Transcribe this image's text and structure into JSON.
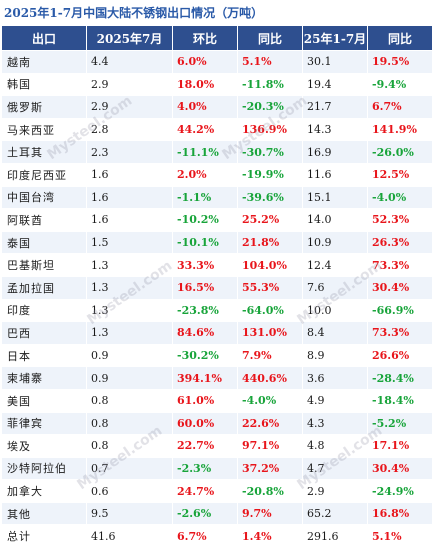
{
  "title": "2025年1-7月中国大陆不锈钢出口情况（万吨）",
  "headers": [
    "出口",
    "2025年7月",
    "环比",
    "同比",
    "25年1-7月",
    "同比"
  ],
  "rows": [
    {
      "name": "越南",
      "m7": "4.4",
      "mom": "6.0%",
      "yoy": "5.1%",
      "ytd": "30.1",
      "ytd_yoy": "19.5%"
    },
    {
      "name": "韩国",
      "m7": "2.9",
      "mom": "18.0%",
      "yoy": "-11.8%",
      "ytd": "19.4",
      "ytd_yoy": "-9.4%"
    },
    {
      "name": "俄罗斯",
      "m7": "2.9",
      "mom": "4.0%",
      "yoy": "-20.3%",
      "ytd": "21.7",
      "ytd_yoy": "6.7%"
    },
    {
      "name": "马来西亚",
      "m7": "2.8",
      "mom": "44.2%",
      "yoy": "136.9%",
      "ytd": "14.3",
      "ytd_yoy": "141.9%"
    },
    {
      "name": "土耳其",
      "m7": "2.3",
      "mom": "-11.1%",
      "yoy": "-30.7%",
      "ytd": "16.9",
      "ytd_yoy": "-26.0%"
    },
    {
      "name": "印度尼西亚",
      "m7": "1.6",
      "mom": "2.0%",
      "yoy": "-19.9%",
      "ytd": "11.6",
      "ytd_yoy": "12.5%"
    },
    {
      "name": "中国台湾",
      "m7": "1.6",
      "mom": "-1.1%",
      "yoy": "-39.6%",
      "ytd": "15.1",
      "ytd_yoy": "-4.0%"
    },
    {
      "name": "阿联酋",
      "m7": "1.6",
      "mom": "-10.2%",
      "yoy": "25.2%",
      "ytd": "14.0",
      "ytd_yoy": "52.3%"
    },
    {
      "name": "泰国",
      "m7": "1.5",
      "mom": "-10.1%",
      "yoy": "21.8%",
      "ytd": "10.9",
      "ytd_yoy": "26.3%"
    },
    {
      "name": "巴基斯坦",
      "m7": "1.3",
      "mom": "33.3%",
      "yoy": "104.0%",
      "ytd": "12.4",
      "ytd_yoy": "73.3%"
    },
    {
      "name": "孟加拉国",
      "m7": "1.3",
      "mom": "16.5%",
      "yoy": "55.3%",
      "ytd": "7.6",
      "ytd_yoy": "30.4%"
    },
    {
      "name": "印度",
      "m7": "1.3",
      "mom": "-23.8%",
      "yoy": "-64.0%",
      "ytd": "10.0",
      "ytd_yoy": "-66.9%"
    },
    {
      "name": "巴西",
      "m7": "1.3",
      "mom": "84.6%",
      "yoy": "131.0%",
      "ytd": "8.4",
      "ytd_yoy": "73.3%"
    },
    {
      "name": "日本",
      "m7": "0.9",
      "mom": "-30.2%",
      "yoy": "7.9%",
      "ytd": "8.9",
      "ytd_yoy": "26.6%"
    },
    {
      "name": "柬埔寨",
      "m7": "0.9",
      "mom": "394.1%",
      "yoy": "440.6%",
      "ytd": "3.6",
      "ytd_yoy": "-28.4%"
    },
    {
      "name": "美国",
      "m7": "0.8",
      "mom": "61.0%",
      "yoy": "-4.0%",
      "ytd": "4.9",
      "ytd_yoy": "-18.4%"
    },
    {
      "name": "菲律宾",
      "m7": "0.8",
      "mom": "60.0%",
      "yoy": "22.6%",
      "ytd": "4.3",
      "ytd_yoy": "-5.2%"
    },
    {
      "name": "埃及",
      "m7": "0.8",
      "mom": "22.7%",
      "yoy": "97.1%",
      "ytd": "4.8",
      "ytd_yoy": "17.1%"
    },
    {
      "name": "沙特阿拉伯",
      "m7": "0.7",
      "mom": "-2.3%",
      "yoy": "37.2%",
      "ytd": "4.7",
      "ytd_yoy": "30.4%"
    },
    {
      "name": "加拿大",
      "m7": "0.6",
      "mom": "24.7%",
      "yoy": "-20.8%",
      "ytd": "2.9",
      "ytd_yoy": "-24.9%"
    },
    {
      "name": "其他",
      "m7": "9.5",
      "mom": "-2.6%",
      "yoy": "9.7%",
      "ytd": "65.2",
      "ytd_yoy": "16.8%"
    },
    {
      "name": "总计",
      "m7": "41.6",
      "mom": "6.7%",
      "yoy": "1.4%",
      "ytd": "291.6",
      "ytd_yoy": "5.1%"
    }
  ],
  "colors": {
    "header_bg": "#2e4f8f",
    "positive": "#e8151b",
    "negative": "#18a43a",
    "stripe": "#eef3fa",
    "title": "#2a5aa8"
  },
  "watermark": "Mysteel.com"
}
